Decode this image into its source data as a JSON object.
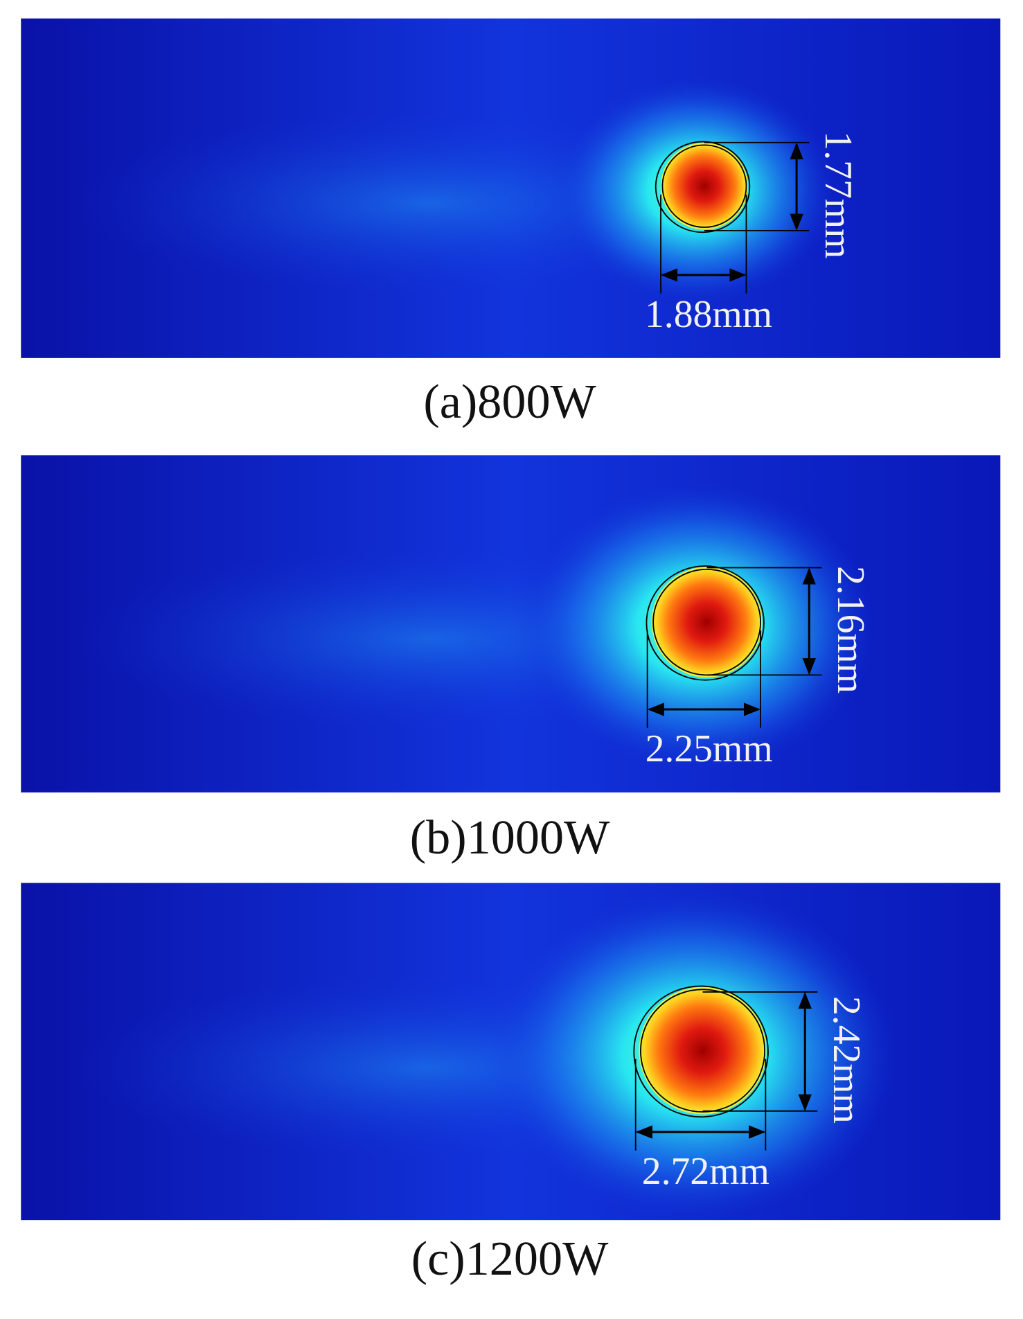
{
  "panels": [
    {
      "caption": "(a)800W",
      "width_label": "1.88mm",
      "height_label": "1.77mm"
    },
    {
      "caption": "(b)1000W",
      "width_label": "2.25mm",
      "height_label": "2.16mm"
    },
    {
      "caption": "(c)1200W",
      "width_label": "2.72mm",
      "height_label": "2.42mm"
    }
  ]
}
